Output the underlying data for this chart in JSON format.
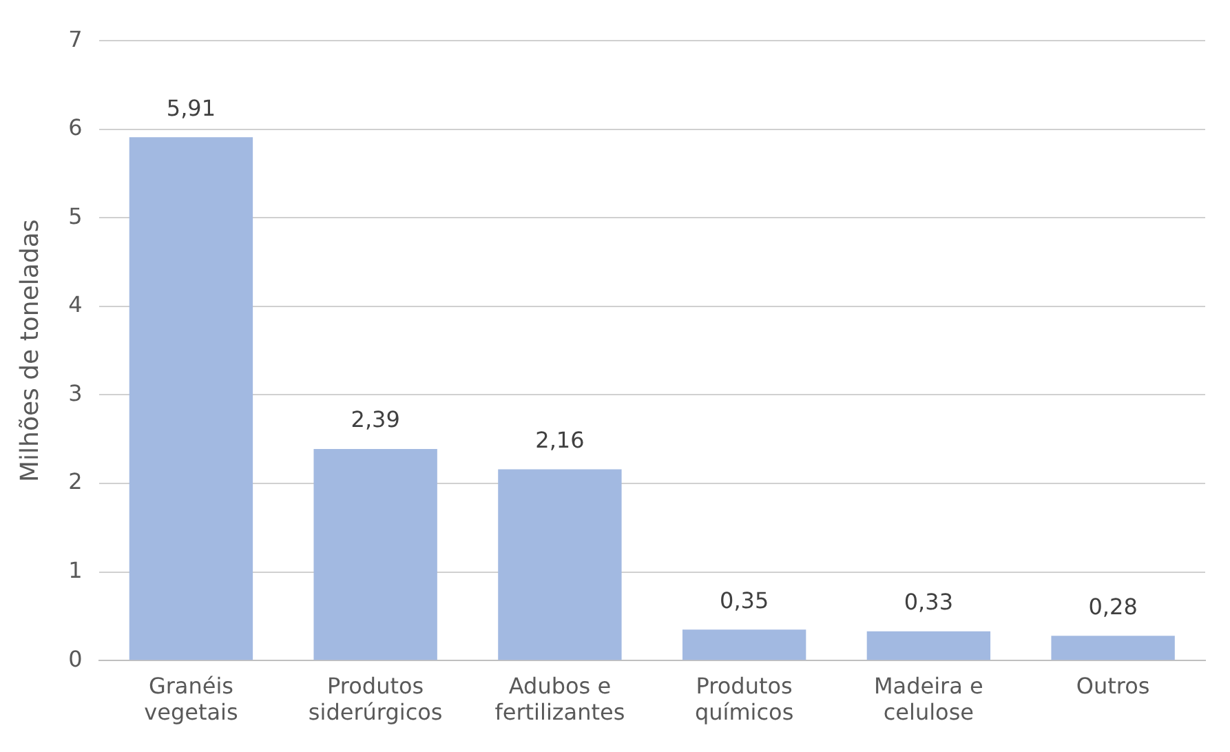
{
  "chart_data": {
    "type": "bar",
    "ylabel": "Milhões de toneladas",
    "categories": [
      "Granéis vegetais",
      "Produtos siderúrgicos",
      "Adubos e fertilizantes",
      "Produtos químicos",
      "Madeira e celulose",
      "Outros"
    ],
    "values": [
      5.91,
      2.39,
      2.16,
      0.35,
      0.33,
      0.28
    ],
    "value_labels": [
      "5,91",
      "2,39",
      "2,16",
      "0,35",
      "0,33",
      "0,28"
    ],
    "color": "#a2b9e1",
    "ylim": [
      0,
      7
    ],
    "yticks": [
      0,
      1,
      2,
      3,
      4,
      5,
      6,
      7
    ],
    "grid": "y",
    "legend": false
  }
}
